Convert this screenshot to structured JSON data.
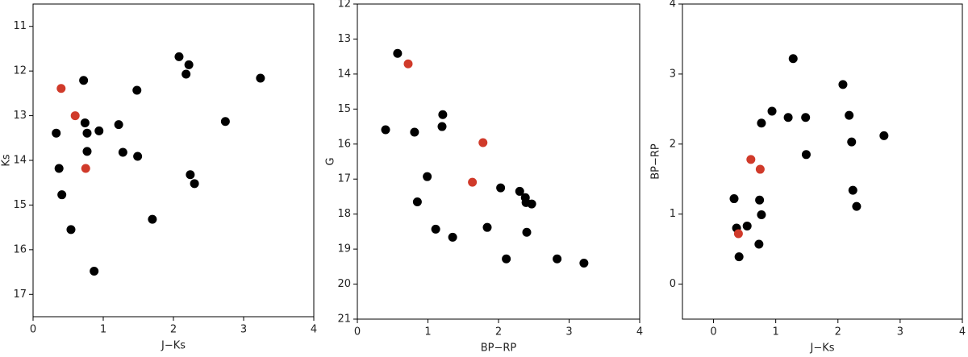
{
  "chart_data": [
    {
      "type": "scatter",
      "xlabel": "J−Ks",
      "ylabel": "Ks",
      "xlim": [
        0,
        4
      ],
      "ylim": [
        17.5,
        10.5
      ],
      "xticks": [
        0,
        1,
        2,
        3,
        4
      ],
      "yticks": [
        11,
        12,
        13,
        14,
        15,
        16,
        17
      ],
      "series": [
        {
          "color": "#000000",
          "x": [
            0.33,
            0.37,
            0.41,
            0.54,
            0.72,
            0.74,
            0.77,
            0.77,
            0.87,
            0.94,
            1.22,
            1.28,
            1.48,
            1.49,
            1.7,
            2.08,
            2.18,
            2.22,
            2.24,
            2.3,
            2.74,
            3.24
          ],
          "values": [
            13.39,
            14.18,
            14.77,
            15.55,
            12.21,
            13.16,
            13.39,
            13.8,
            16.48,
            13.34,
            13.2,
            13.82,
            12.43,
            13.91,
            15.32,
            11.68,
            12.07,
            11.86,
            14.32,
            14.52,
            13.13,
            12.16
          ]
        },
        {
          "color": "#d03a2a",
          "x": [
            0.4,
            0.6,
            0.75
          ],
          "values": [
            12.39,
            13.0,
            14.18
          ]
        }
      ]
    },
    {
      "type": "scatter",
      "xlabel": "BP−RP",
      "ylabel": "G",
      "xlim": [
        0,
        4
      ],
      "ylim": [
        21,
        12
      ],
      "xticks": [
        0,
        1,
        2,
        3,
        4
      ],
      "yticks": [
        12,
        13,
        14,
        15,
        16,
        17,
        18,
        19,
        20,
        21
      ],
      "series": [
        {
          "color": "#000000",
          "x": [
            0.4,
            0.57,
            0.81,
            0.85,
            0.99,
            1.11,
            1.2,
            1.21,
            1.35,
            1.84,
            2.03,
            2.11,
            2.3,
            2.38,
            2.39,
            2.4,
            2.47,
            2.83,
            3.21
          ],
          "values": [
            15.59,
            13.41,
            15.66,
            17.65,
            16.93,
            18.43,
            15.5,
            15.16,
            18.66,
            18.38,
            17.25,
            19.28,
            17.35,
            17.53,
            17.67,
            18.52,
            17.71,
            19.28,
            19.4
          ]
        },
        {
          "color": "#d03a2a",
          "x": [
            0.72,
            1.63,
            1.78
          ],
          "values": [
            13.71,
            17.09,
            15.96
          ]
        }
      ]
    },
    {
      "type": "scatter",
      "xlabel": "J−Ks",
      "ylabel": "BP−RP",
      "xlim": [
        -0.5,
        4
      ],
      "ylim": [
        -0.5,
        4
      ],
      "xticks": [
        0,
        1,
        2,
        3,
        4
      ],
      "yticks": [
        0,
        1,
        2,
        3,
        4
      ],
      "series": [
        {
          "color": "#000000",
          "x": [
            0.33,
            0.37,
            0.41,
            0.54,
            0.74,
            0.77,
            0.73,
            0.77,
            0.94,
            1.2,
            1.28,
            1.48,
            1.49,
            2.08,
            2.18,
            2.22,
            2.24,
            2.3,
            2.74
          ],
          "values": [
            1.22,
            0.8,
            0.39,
            0.83,
            1.2,
            0.99,
            0.57,
            2.3,
            2.47,
            2.38,
            3.22,
            2.38,
            1.85,
            2.85,
            2.41,
            2.03,
            1.34,
            1.11,
            2.12
          ]
        },
        {
          "color": "#d03a2a",
          "x": [
            0.4,
            0.6,
            0.75
          ],
          "values": [
            0.72,
            1.78,
            1.64
          ]
        }
      ]
    }
  ]
}
